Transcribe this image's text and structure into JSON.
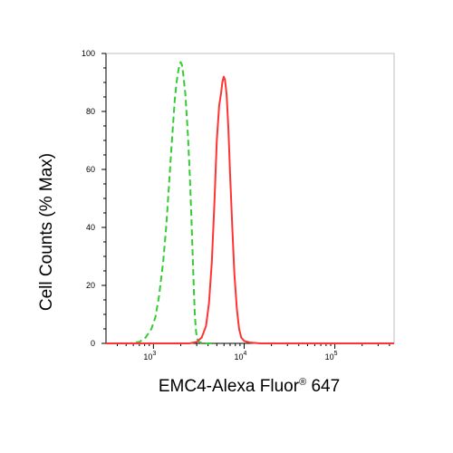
{
  "chart_data": {
    "type": "line",
    "xlabel": "EMC4-Alexa Fluor",
    "xlabel_sup": "®",
    "xlabel_suffix": " 647",
    "ylabel": "Cell Counts (% Max)",
    "x_scale": "log",
    "xlim": [
      300,
      450000
    ],
    "ylim": [
      0,
      100
    ],
    "grid": false,
    "legend": "none",
    "x_ticks": [
      {
        "value": 1000,
        "base": "10",
        "exp": "3"
      },
      {
        "value": 10000,
        "base": "10",
        "exp": "4"
      },
      {
        "value": 100000,
        "base": "10",
        "exp": "5"
      }
    ],
    "y_ticks": [
      0,
      20,
      40,
      60,
      80,
      100
    ],
    "series": [
      {
        "color": "#33cc33",
        "style": "dashed",
        "x": [
          300,
          550,
          700,
          820,
          950,
          1050,
          1150,
          1280,
          1380,
          1480,
          1560,
          1640,
          1720,
          1800,
          1880,
          1950,
          2000,
          2060,
          2130,
          2250,
          2400,
          2520,
          2620,
          2700,
          2780,
          2860,
          2950,
          3050,
          3200,
          3500,
          4000,
          4500
        ],
        "y": [
          0,
          0,
          0.5,
          2,
          5,
          9,
          16,
          28,
          40,
          54,
          65,
          75,
          84,
          90,
          94,
          96.5,
          97,
          96,
          93,
          86,
          72,
          58,
          44,
          32,
          20,
          10,
          4,
          1.5,
          0.5,
          0,
          0,
          0
        ]
      },
      {
        "color": "#ff3333",
        "style": "solid",
        "x": [
          300,
          2500,
          3000,
          3400,
          3800,
          4100,
          4400,
          4700,
          5000,
          5300,
          5550,
          5750,
          5950,
          6150,
          6400,
          6700,
          7000,
          7400,
          7800,
          8300,
          8800,
          9300,
          10000,
          11500,
          15000,
          40000,
          450000
        ],
        "y": [
          0,
          0,
          0.5,
          2,
          6,
          14,
          28,
          48,
          70,
          82,
          86,
          90,
          92,
          91,
          86,
          74,
          58,
          40,
          24,
          12,
          5,
          2,
          0.8,
          0.3,
          0,
          0,
          0
        ]
      }
    ]
  }
}
